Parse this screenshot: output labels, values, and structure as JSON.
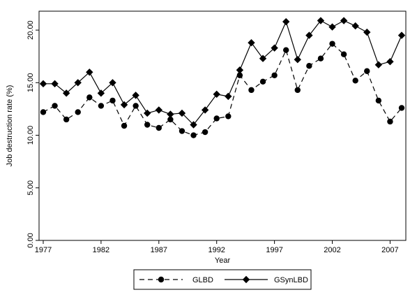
{
  "chart_data": {
    "type": "line",
    "xlabel": "Year",
    "ylabel": "Job destruction rate (%)",
    "xlim": [
      1977,
      2008
    ],
    "ylim": [
      0,
      21.8
    ],
    "x_ticks": [
      "1977",
      "1982",
      "1987",
      "1992",
      "1997",
      "2002",
      "2007"
    ],
    "y_ticks": [
      "0.00",
      "5.00",
      "10.00",
      "15.00",
      "20.00"
    ],
    "grid": false,
    "legend_position": "bottom",
    "x": [
      1977,
      1978,
      1979,
      1980,
      1981,
      1982,
      1983,
      1984,
      1985,
      1986,
      1987,
      1988,
      1989,
      1990,
      1991,
      1992,
      1993,
      1994,
      1995,
      1996,
      1997,
      1998,
      1999,
      2000,
      2001,
      2002,
      2003,
      2004,
      2005,
      2006,
      2007,
      2008
    ],
    "series": [
      {
        "name": "GLBD",
        "line_style": "dashed",
        "marker": "circle",
        "values": [
          12.2,
          12.8,
          11.5,
          12.2,
          13.6,
          12.8,
          13.3,
          10.9,
          12.8,
          11.0,
          10.7,
          11.5,
          10.4,
          10.0,
          10.3,
          11.6,
          11.8,
          15.7,
          14.3,
          15.1,
          15.7,
          18.1,
          14.3,
          16.6,
          17.3,
          18.7,
          17.7,
          15.2,
          16.1,
          13.3,
          11.3,
          12.6
        ]
      },
      {
        "name": "GSynLBD",
        "line_style": "solid",
        "marker": "diamond",
        "values": [
          14.9,
          14.9,
          14.0,
          15.0,
          16.0,
          14.0,
          15.0,
          12.9,
          13.8,
          12.1,
          12.4,
          12.0,
          12.1,
          11.0,
          12.4,
          13.9,
          13.7,
          16.2,
          18.8,
          17.3,
          18.3,
          20.8,
          17.2,
          19.5,
          20.9,
          20.3,
          20.9,
          20.4,
          19.8,
          16.7,
          17.0,
          19.5
        ]
      }
    ]
  }
}
